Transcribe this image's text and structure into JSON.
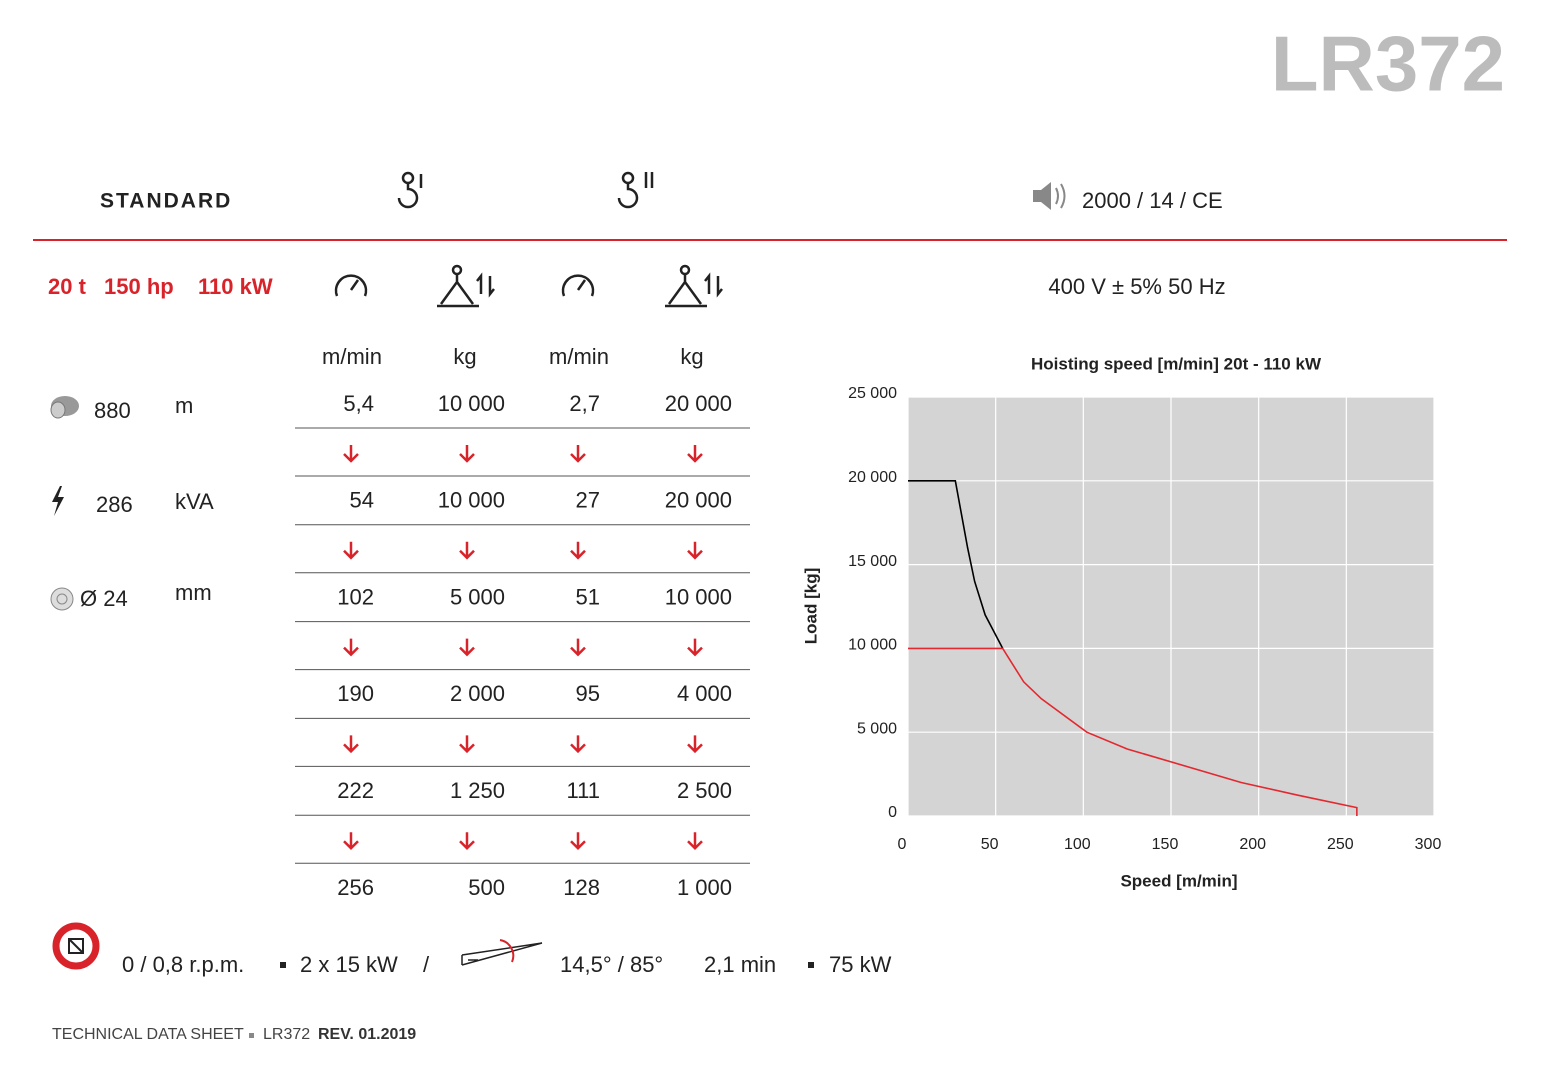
{
  "header": {
    "title": "LR372"
  },
  "standard": {
    "label": "STANDARD",
    "noise": "2000 / 14 / CE"
  },
  "motor": {
    "load": "20 t",
    "power_hp": "150 hp",
    "power_kw": "110 kW",
    "supply": "400 V ± 5% 50 Hz"
  },
  "specs": [
    {
      "value": "880",
      "unit": "m"
    },
    {
      "value": "286",
      "unit": "kVA"
    },
    {
      "value": "Ø 24",
      "unit": "mm"
    }
  ],
  "table": {
    "header": [
      "m/min",
      "kg",
      "m/min",
      "kg"
    ],
    "rows": [
      [
        "5,4",
        "10 000",
        "2,7",
        "20 000"
      ],
      [
        "54",
        "10 000",
        "27",
        "20 000"
      ],
      [
        "102",
        "5 000",
        "51",
        "10 000"
      ],
      [
        "190",
        "2 000",
        "95",
        "4 000"
      ],
      [
        "222",
        "1 250",
        "111",
        "2 500"
      ],
      [
        "256",
        "500",
        "128",
        "1 000"
      ]
    ]
  },
  "slewing": {
    "speed": "0 / 0,8 r.p.m.",
    "power": "2 x 15 kW",
    "separator": "/",
    "luffing_angle": "14,5° / 85°",
    "luffing_time": "2,1 min",
    "luffing_power": "75 kW"
  },
  "footer": {
    "doc": "TECHNICAL DATA SHEET",
    "model": "LR372",
    "revision": "REV. 01.2019"
  },
  "chart_data": {
    "type": "line",
    "title": "Hoisting speed [m/min] 20t - 110 kW",
    "x_label": "Speed [m/min]",
    "y_label": "Load [kg]",
    "xlim": [
      0,
      300
    ],
    "ylim": [
      0,
      25000
    ],
    "xticks": [
      0,
      50,
      100,
      150,
      200,
      250,
      300
    ],
    "yticks": [
      0,
      {
        "value": 5000,
        "label": "5 000"
      },
      {
        "value": 10000,
        "label": "10 000"
      },
      {
        "value": 15000,
        "label": "15 000"
      },
      {
        "value": 20000,
        "label": "20 000"
      },
      {
        "value": 25000,
        "label": "25 000"
      }
    ],
    "grid": true,
    "background": "#d4d4d4",
    "series": [
      {
        "color": "#000000",
        "x": [
          0,
          27,
          34,
          38,
          44,
          54
        ],
        "values": [
          20000,
          20000,
          16000,
          14000,
          12000,
          10000
        ]
      },
      {
        "color": "#e3282f",
        "x": [
          0,
          54,
          66,
          76,
          102,
          125,
          190,
          222,
          256,
          256
        ],
        "values": [
          10000,
          10000,
          8000,
          7000,
          5000,
          4000,
          2000,
          1250,
          500,
          0
        ]
      }
    ]
  }
}
